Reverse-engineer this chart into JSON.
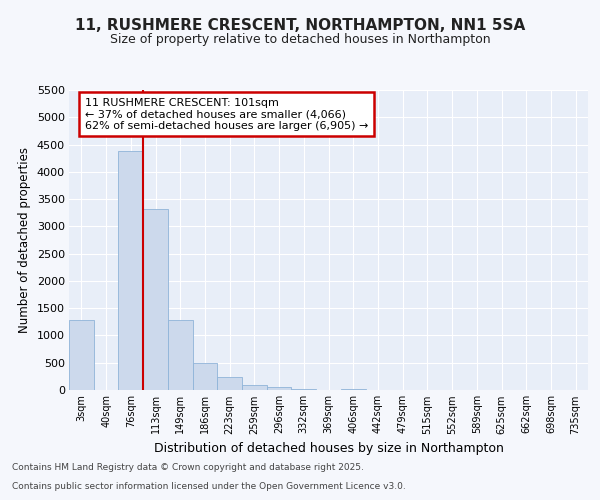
{
  "title1": "11, RUSHMERE CRESCENT, NORTHAMPTON, NN1 5SA",
  "title2": "Size of property relative to detached houses in Northampton",
  "xlabel": "Distribution of detached houses by size in Northampton",
  "ylabel": "Number of detached properties",
  "categories": [
    "3sqm",
    "40sqm",
    "76sqm",
    "113sqm",
    "149sqm",
    "186sqm",
    "223sqm",
    "259sqm",
    "296sqm",
    "332sqm",
    "369sqm",
    "406sqm",
    "442sqm",
    "479sqm",
    "515sqm",
    "552sqm",
    "589sqm",
    "625sqm",
    "662sqm",
    "698sqm",
    "735sqm"
  ],
  "bar_heights": [
    1275,
    0,
    4375,
    3325,
    1275,
    500,
    240,
    100,
    60,
    20,
    5,
    15,
    0,
    0,
    0,
    0,
    0,
    0,
    0,
    0,
    0
  ],
  "bar_color": "#ccd9ec",
  "bar_edgecolor": "#8fb4d9",
  "vline_color": "#cc0000",
  "vline_x": 2.5,
  "annotation_line1": "11 RUSHMERE CRESCENT: 101sqm",
  "annotation_line2": "← 37% of detached houses are smaller (4,066)",
  "annotation_line3": "62% of semi-detached houses are larger (6,905) →",
  "annotation_box_edgecolor": "#cc0000",
  "ylim": [
    0,
    5500
  ],
  "yticks": [
    0,
    500,
    1000,
    1500,
    2000,
    2500,
    3000,
    3500,
    4000,
    4500,
    5000,
    5500
  ],
  "footer1": "Contains HM Land Registry data © Crown copyright and database right 2025.",
  "footer2": "Contains public sector information licensed under the Open Government Licence v3.0.",
  "background_color": "#f5f7fc",
  "plot_bg_color": "#e8eef8",
  "grid_color": "#ffffff"
}
